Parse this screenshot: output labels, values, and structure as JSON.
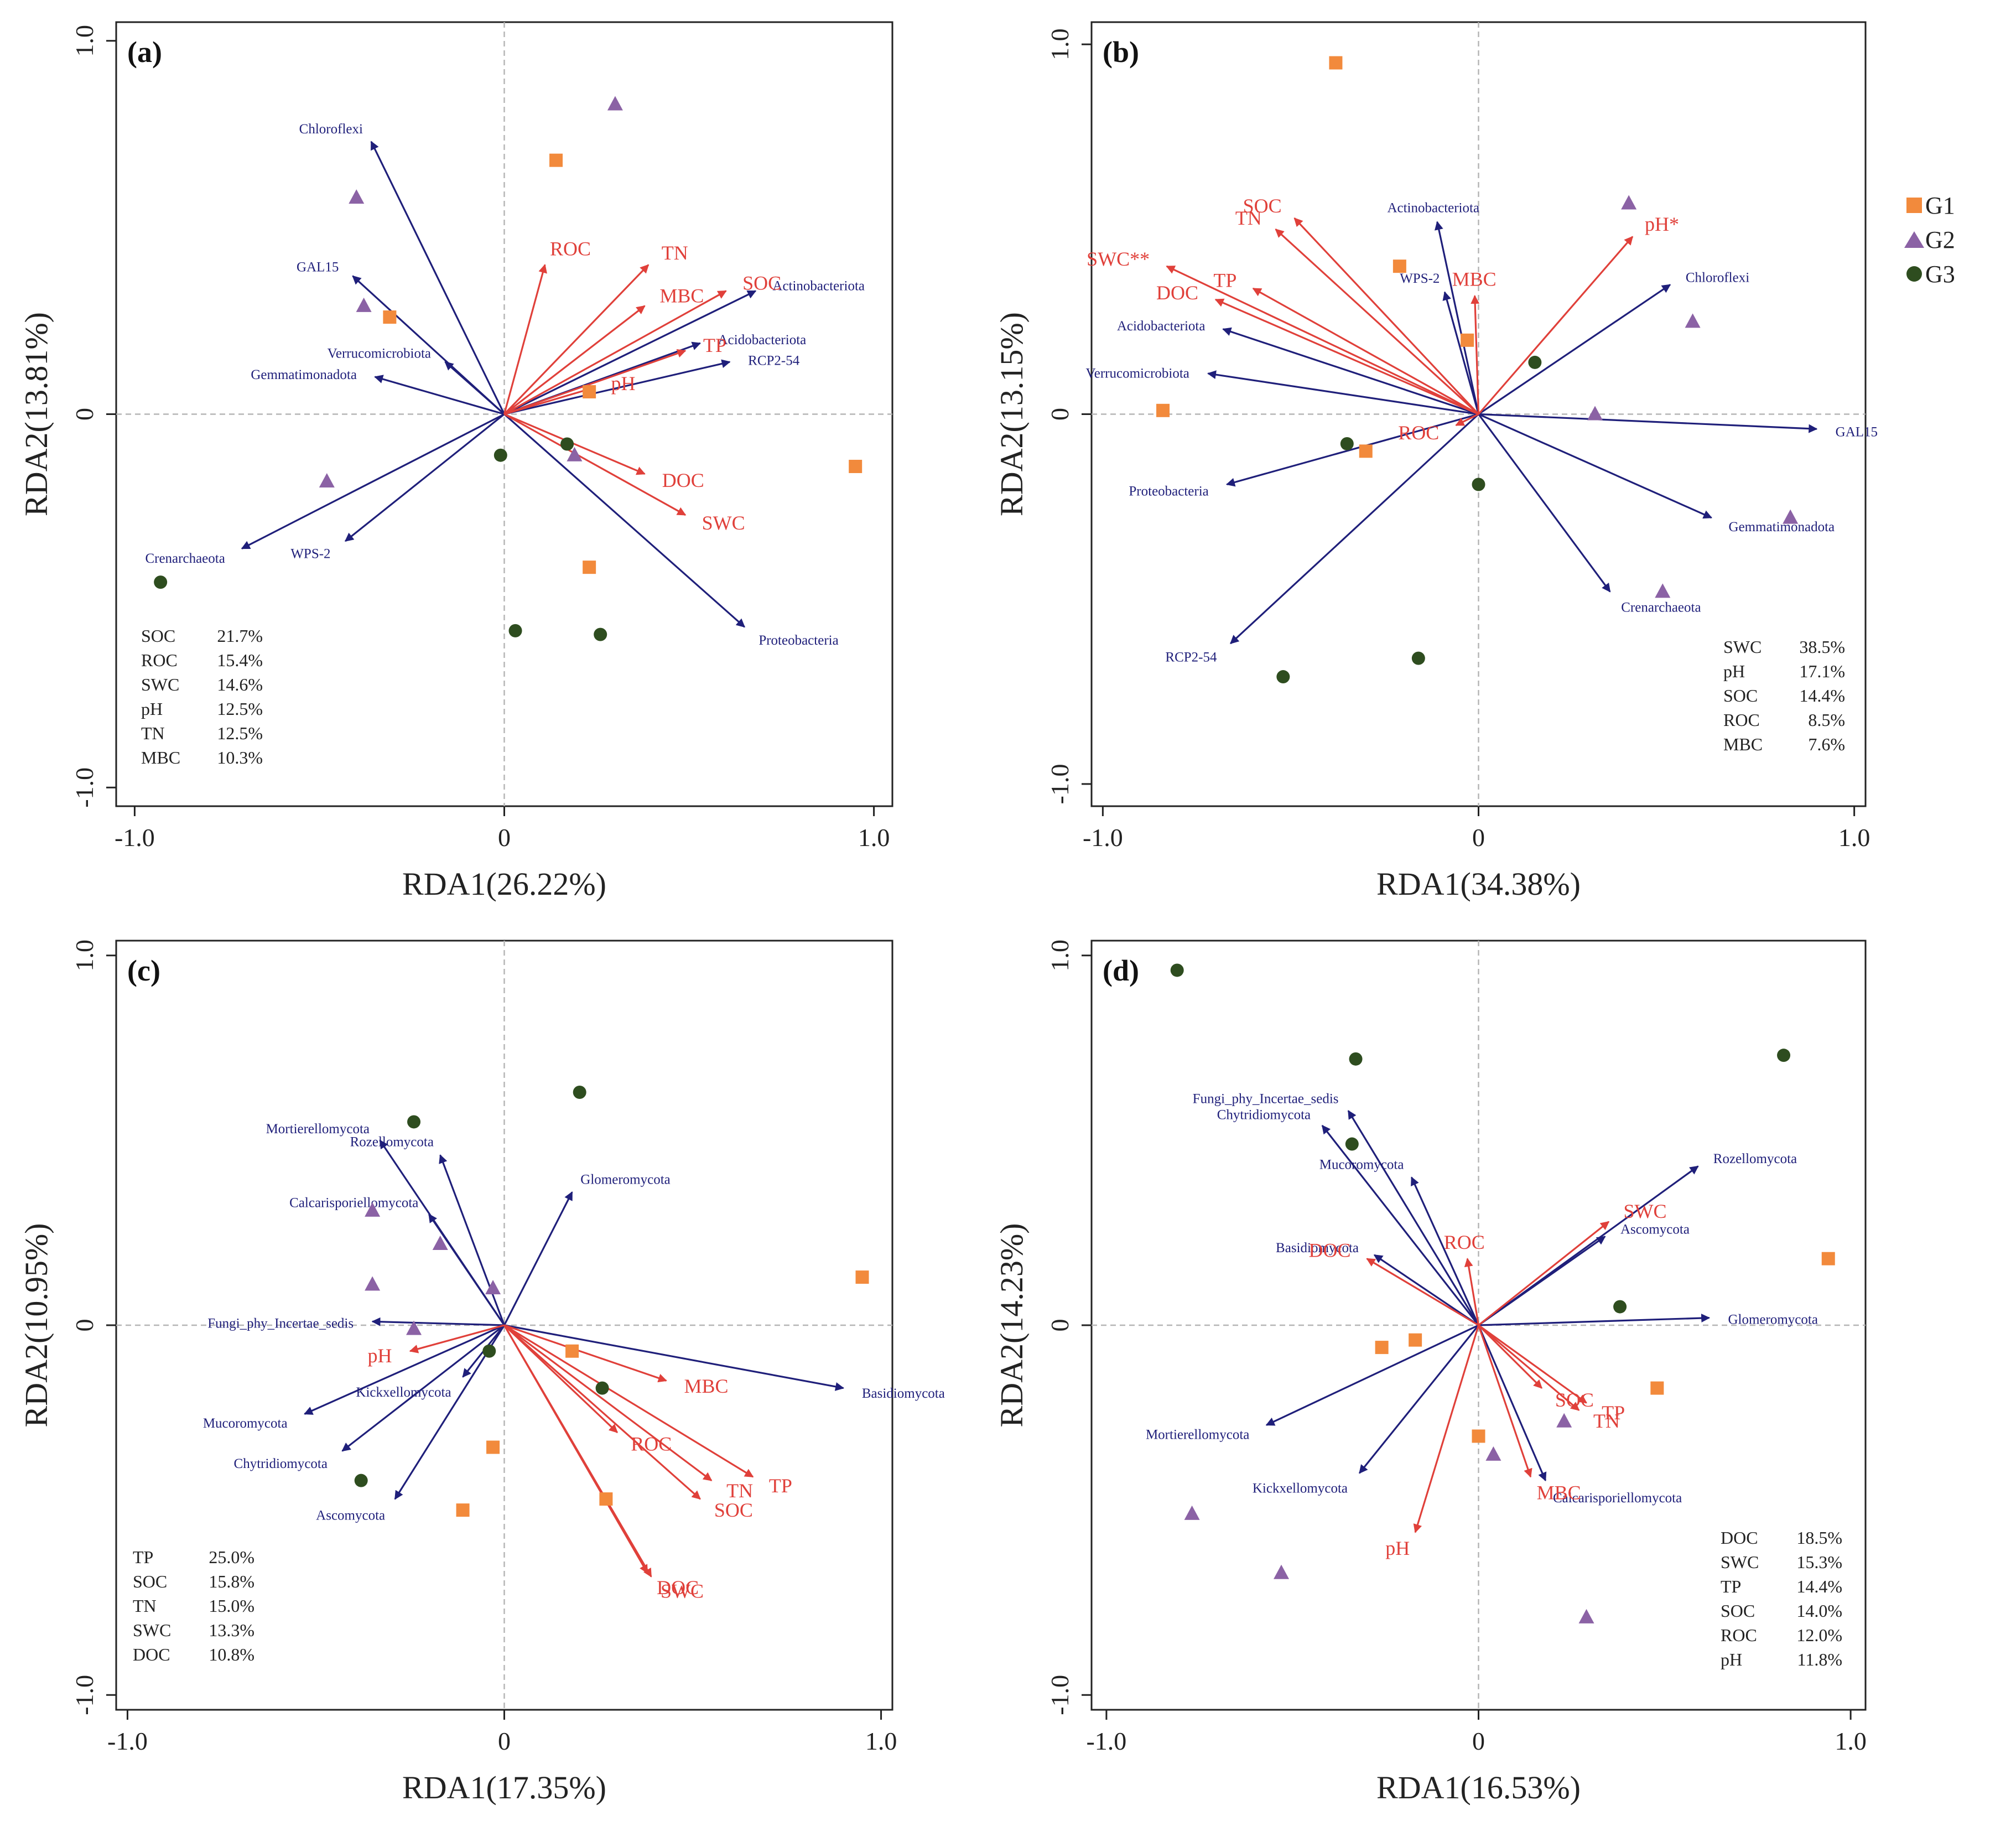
{
  "legend": [
    {
      "label": "G1",
      "shape": "square",
      "color": "#f28a3c"
    },
    {
      "label": "G2",
      "shape": "triangle",
      "color": "#8b62a5"
    },
    {
      "label": "G3",
      "shape": "circle",
      "color": "#2e4d1f"
    }
  ],
  "colors": {
    "species": "#1f1f7a",
    "env": "#e0403a",
    "axis": "#222222",
    "guide": "#b5b5b5"
  },
  "chart_data": [
    {
      "type": "scatter",
      "panel": "(a)",
      "xlabel": "RDA1(26.22%)",
      "ylabel": "RDA2(13.81%)",
      "xlim": [
        -1.05,
        1.05
      ],
      "ylim": [
        -1.05,
        1.05
      ],
      "xticks": [
        "-1.0",
        "0",
        "1.0"
      ],
      "yticks": [
        "-1.0",
        "0",
        "1.0"
      ],
      "species": [
        {
          "name": "Chloroflexi",
          "x": -0.36,
          "y": 0.73
        },
        {
          "name": "GAL15",
          "x": -0.41,
          "y": 0.37
        },
        {
          "name": "Gemmatimonadota",
          "x": -0.35,
          "y": 0.1
        },
        {
          "name": "Verrucomicrobiota",
          "x": -0.16,
          "y": 0.14
        },
        {
          "name": "Actinobacteriota",
          "x": 0.68,
          "y": 0.33
        },
        {
          "name": "Acidobacteriota",
          "x": 0.53,
          "y": 0.19
        },
        {
          "name": "RCP2-54",
          "x": 0.61,
          "y": 0.14
        },
        {
          "name": "Crenarchaeota",
          "x": -0.71,
          "y": -0.36
        },
        {
          "name": "WPS-2",
          "x": -0.43,
          "y": -0.34
        },
        {
          "name": "Proteobacteria",
          "x": 0.65,
          "y": -0.57
        }
      ],
      "env": [
        {
          "name": "ROC",
          "x": 0.11,
          "y": 0.4
        },
        {
          "name": "TN",
          "x": 0.39,
          "y": 0.4
        },
        {
          "name": "SOC",
          "x": 0.6,
          "y": 0.33
        },
        {
          "name": "MBC",
          "x": 0.38,
          "y": 0.29
        },
        {
          "name": "TP",
          "x": 0.49,
          "y": 0.17
        },
        {
          "name": "pH",
          "x": 0.24,
          "y": 0.07
        },
        {
          "name": "DOC",
          "x": 0.38,
          "y": -0.16
        },
        {
          "name": "SWC",
          "x": 0.49,
          "y": -0.27
        }
      ],
      "samples": [
        {
          "group": "G1",
          "x": 0.14,
          "y": 0.68
        },
        {
          "group": "G1",
          "x": -0.31,
          "y": 0.26
        },
        {
          "group": "G1",
          "x": 0.23,
          "y": 0.06
        },
        {
          "group": "G1",
          "x": 0.95,
          "y": -0.14
        },
        {
          "group": "G1",
          "x": 0.23,
          "y": -0.41
        },
        {
          "group": "G2",
          "x": 0.3,
          "y": 0.83
        },
        {
          "group": "G2",
          "x": -0.4,
          "y": 0.58
        },
        {
          "group": "G2",
          "x": -0.38,
          "y": 0.29
        },
        {
          "group": "G2",
          "x": 0.19,
          "y": -0.11
        },
        {
          "group": "G2",
          "x": -0.48,
          "y": -0.18
        },
        {
          "group": "G3",
          "x": -0.01,
          "y": -0.11
        },
        {
          "group": "G3",
          "x": 0.17,
          "y": -0.08
        },
        {
          "group": "G3",
          "x": -0.93,
          "y": -0.45
        },
        {
          "group": "G3",
          "x": 0.03,
          "y": -0.58
        },
        {
          "group": "G3",
          "x": 0.26,
          "y": -0.59
        }
      ],
      "contributions": [
        {
          "var": "SOC",
          "value": "21.7%"
        },
        {
          "var": "ROC",
          "value": "15.4%"
        },
        {
          "var": "SWC",
          "value": "14.6%"
        },
        {
          "var": "pH",
          "value": "12.5%"
        },
        {
          "var": "TN",
          "value": "12.5%"
        },
        {
          "var": "MBC",
          "value": "10.3%"
        }
      ]
    },
    {
      "type": "scatter",
      "panel": "(b)",
      "xlabel": "RDA1(34.38%)",
      "ylabel": "RDA2(13.15%)",
      "xlim": [
        -1.03,
        1.03
      ],
      "ylim": [
        -1.06,
        1.06
      ],
      "xticks": [
        "-1.0",
        "0",
        "1.0"
      ],
      "yticks": [
        "-1.0",
        "0",
        "1.0"
      ],
      "species": [
        {
          "name": "Actinobacteriota",
          "x": -0.11,
          "y": 0.52
        },
        {
          "name": "WPS-2",
          "x": -0.09,
          "y": 0.33
        },
        {
          "name": "Chloroflexi",
          "x": 0.51,
          "y": 0.35
        },
        {
          "name": "Acidobacteriota",
          "x": -0.68,
          "y": 0.23
        },
        {
          "name": "Verrucomicrobiota",
          "x": -0.72,
          "y": 0.11
        },
        {
          "name": "GAL15",
          "x": 0.9,
          "y": -0.04
        },
        {
          "name": "Proteobacteria",
          "x": -0.67,
          "y": -0.19
        },
        {
          "name": "Gemmatimonadota",
          "x": 0.62,
          "y": -0.28
        },
        {
          "name": "Crenarchaeota",
          "x": 0.35,
          "y": -0.48
        },
        {
          "name": "RCP2-54",
          "x": -0.66,
          "y": -0.62
        }
      ],
      "env": [
        {
          "name": "SOC",
          "x": -0.49,
          "y": 0.53
        },
        {
          "name": "TN",
          "x": -0.54,
          "y": 0.5
        },
        {
          "name": "SWC**",
          "x": -0.83,
          "y": 0.4
        },
        {
          "name": "TP",
          "x": -0.6,
          "y": 0.34
        },
        {
          "name": "DOC",
          "x": -0.7,
          "y": 0.31
        },
        {
          "name": "pH*",
          "x": 0.41,
          "y": 0.48
        },
        {
          "name": "MBC",
          "x": -0.01,
          "y": 0.32
        },
        {
          "name": "ROC",
          "x": -0.06,
          "y": -0.03
        }
      ],
      "samples": [
        {
          "group": "G1",
          "x": -0.38,
          "y": 0.95
        },
        {
          "group": "G1",
          "x": -0.21,
          "y": 0.4
        },
        {
          "group": "G1",
          "x": -0.03,
          "y": 0.2
        },
        {
          "group": "G1",
          "x": -0.84,
          "y": 0.01
        },
        {
          "group": "G1",
          "x": -0.3,
          "y": -0.1
        },
        {
          "group": "G2",
          "x": 0.4,
          "y": 0.57
        },
        {
          "group": "G2",
          "x": 0.57,
          "y": 0.25
        },
        {
          "group": "G2",
          "x": 0.31,
          "y": 0.0
        },
        {
          "group": "G2",
          "x": 0.83,
          "y": -0.28
        },
        {
          "group": "G2",
          "x": 0.49,
          "y": -0.48
        },
        {
          "group": "G3",
          "x": 0.15,
          "y": 0.14
        },
        {
          "group": "G3",
          "x": -0.35,
          "y": -0.08
        },
        {
          "group": "G3",
          "x": 0.0,
          "y": -0.19
        },
        {
          "group": "G3",
          "x": -0.16,
          "y": -0.66
        },
        {
          "group": "G3",
          "x": -0.52,
          "y": -0.71
        }
      ],
      "contributions": [
        {
          "var": "SWC",
          "value": "38.5%"
        },
        {
          "var": "pH",
          "value": "17.1%"
        },
        {
          "var": "SOC",
          "value": "14.4%"
        },
        {
          "var": "ROC",
          "value": "8.5%"
        },
        {
          "var": "MBC",
          "value": "7.6%"
        }
      ]
    },
    {
      "type": "scatter",
      "panel": "(c)",
      "xlabel": "RDA1(17.35%)",
      "ylabel": "RDA2(10.95%)",
      "xlim": [
        -1.03,
        1.03
      ],
      "ylim": [
        -1.04,
        1.04
      ],
      "xticks": [
        "-1.0",
        "0",
        "1.0"
      ],
      "yticks": [
        "-1.0",
        "0",
        "1.0"
      ],
      "species": [
        {
          "name": "Mortierellomycota",
          "x": -0.33,
          "y": 0.5
        },
        {
          "name": "Rozellomycota",
          "x": -0.17,
          "y": 0.46
        },
        {
          "name": "Glomeromycota",
          "x": 0.18,
          "y": 0.36
        },
        {
          "name": "Calcarisporiellomycota",
          "x": -0.2,
          "y": 0.3
        },
        {
          "name": "Fungi_phy_Incertae_sedis",
          "x": -0.35,
          "y": 0.01
        },
        {
          "name": "Kickxellomycota",
          "x": -0.11,
          "y": -0.14
        },
        {
          "name": "Basidiomycota",
          "x": 0.9,
          "y": -0.17
        },
        {
          "name": "Mucoromycota",
          "x": -0.53,
          "y": -0.24
        },
        {
          "name": "Chytridiomycota",
          "x": -0.43,
          "y": -0.34
        },
        {
          "name": "Ascomycota",
          "x": -0.29,
          "y": -0.47
        }
      ],
      "env": [
        {
          "name": "pH",
          "x": -0.25,
          "y": -0.07
        },
        {
          "name": "MBC",
          "x": 0.43,
          "y": -0.15
        },
        {
          "name": "ROC",
          "x": 0.3,
          "y": -0.29
        },
        {
          "name": "TP",
          "x": 0.66,
          "y": -0.41
        },
        {
          "name": "TN",
          "x": 0.55,
          "y": -0.42
        },
        {
          "name": "SOC",
          "x": 0.52,
          "y": -0.47
        },
        {
          "name": "SWC",
          "x": 0.39,
          "y": -0.68
        },
        {
          "name": "DOC",
          "x": 0.38,
          "y": -0.67
        }
      ],
      "samples": [
        {
          "group": "G1",
          "x": 0.95,
          "y": 0.13
        },
        {
          "group": "G1",
          "x": 0.18,
          "y": -0.07
        },
        {
          "group": "G1",
          "x": -0.03,
          "y": -0.33
        },
        {
          "group": "G1",
          "x": 0.27,
          "y": -0.47
        },
        {
          "group": "G1",
          "x": -0.11,
          "y": -0.5
        },
        {
          "group": "G2",
          "x": -0.35,
          "y": 0.31
        },
        {
          "group": "G2",
          "x": -0.17,
          "y": 0.22
        },
        {
          "group": "G2",
          "x": -0.35,
          "y": 0.11
        },
        {
          "group": "G2",
          "x": -0.03,
          "y": 0.1
        },
        {
          "group": "G2",
          "x": -0.24,
          "y": -0.01
        },
        {
          "group": "G3",
          "x": 0.2,
          "y": 0.63
        },
        {
          "group": "G3",
          "x": -0.24,
          "y": 0.55
        },
        {
          "group": "G3",
          "x": -0.04,
          "y": -0.07
        },
        {
          "group": "G3",
          "x": 0.26,
          "y": -0.17
        },
        {
          "group": "G3",
          "x": -0.38,
          "y": -0.42
        }
      ],
      "contributions": [
        {
          "var": "TP",
          "value": "25.0%"
        },
        {
          "var": "SOC",
          "value": "15.8%"
        },
        {
          "var": "TN",
          "value": "15.0%"
        },
        {
          "var": "SWC",
          "value": "13.3%"
        },
        {
          "var": "DOC",
          "value": "10.8%"
        }
      ]
    },
    {
      "type": "scatter",
      "panel": "(d)",
      "xlabel": "RDA1(16.53%)",
      "ylabel": "RDA2(14.23%)",
      "xlim": [
        -1.04,
        1.04
      ],
      "ylim": [
        -1.04,
        1.04
      ],
      "xticks": [
        "-1.0",
        "0",
        "1.0"
      ],
      "yticks": [
        "-1.0",
        "0",
        "1.0"
      ],
      "species": [
        {
          "name": "Fungi_phy_Incertae_sedis",
          "x": -0.35,
          "y": 0.58
        },
        {
          "name": "Chytridiomycota",
          "x": -0.42,
          "y": 0.54
        },
        {
          "name": "Mucoromycota",
          "x": -0.18,
          "y": 0.4
        },
        {
          "name": "Rozellomycota",
          "x": 0.59,
          "y": 0.43
        },
        {
          "name": "Ascomycota",
          "x": 0.34,
          "y": 0.24
        },
        {
          "name": "Basidiomycota",
          "x": -0.28,
          "y": 0.19
        },
        {
          "name": "Glomeromycota",
          "x": 0.62,
          "y": 0.02
        },
        {
          "name": "Mortierellomycota",
          "x": -0.57,
          "y": -0.27
        },
        {
          "name": "Kickxellomycota",
          "x": -0.32,
          "y": -0.4
        },
        {
          "name": "Calcarisporiellomycota",
          "x": 0.18,
          "y": -0.42
        }
      ],
      "env": [
        {
          "name": "SWC",
          "x": 0.35,
          "y": 0.28
        },
        {
          "name": "ROC",
          "x": -0.03,
          "y": 0.18
        },
        {
          "name": "DOC",
          "x": -0.3,
          "y": 0.18
        },
        {
          "name": "SOC",
          "x": 0.17,
          "y": -0.17
        },
        {
          "name": "TP",
          "x": 0.29,
          "y": -0.21
        },
        {
          "name": "TN",
          "x": 0.27,
          "y": -0.23
        },
        {
          "name": "MBC",
          "x": 0.14,
          "y": -0.41
        },
        {
          "name": "pH",
          "x": -0.17,
          "y": -0.56
        }
      ],
      "samples": [
        {
          "group": "G1",
          "x": 0.94,
          "y": 0.18
        },
        {
          "group": "G1",
          "x": -0.17,
          "y": -0.04
        },
        {
          "group": "G1",
          "x": -0.26,
          "y": -0.06
        },
        {
          "group": "G1",
          "x": 0.48,
          "y": -0.17
        },
        {
          "group": "G1",
          "x": 0.0,
          "y": -0.3
        },
        {
          "group": "G2",
          "x": 0.23,
          "y": -0.26
        },
        {
          "group": "G2",
          "x": 0.04,
          "y": -0.35
        },
        {
          "group": "G2",
          "x": -0.77,
          "y": -0.51
        },
        {
          "group": "G2",
          "x": -0.53,
          "y": -0.67
        },
        {
          "group": "G2",
          "x": 0.29,
          "y": -0.79
        },
        {
          "group": "G3",
          "x": -0.81,
          "y": 0.96
        },
        {
          "group": "G3",
          "x": 0.82,
          "y": 0.73
        },
        {
          "group": "G3",
          "x": -0.33,
          "y": 0.72
        },
        {
          "group": "G3",
          "x": -0.34,
          "y": 0.49
        },
        {
          "group": "G3",
          "x": 0.38,
          "y": 0.05
        }
      ],
      "contributions": [
        {
          "var": "DOC",
          "value": "18.5%"
        },
        {
          "var": "SWC",
          "value": "15.3%"
        },
        {
          "var": "TP",
          "value": "14.4%"
        },
        {
          "var": "SOC",
          "value": "14.0%"
        },
        {
          "var": "ROC",
          "value": "12.0%"
        },
        {
          "var": "pH",
          "value": "11.8%"
        }
      ]
    }
  ]
}
